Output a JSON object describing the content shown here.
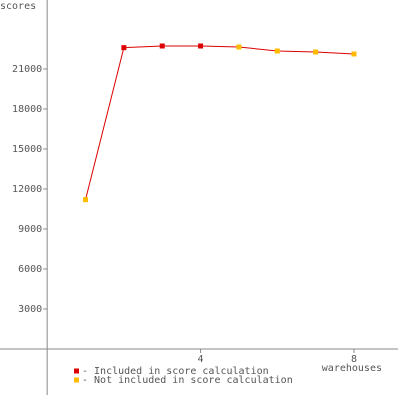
{
  "chart_data": {
    "type": "line",
    "y_label": "scores",
    "x_label": "warehouses",
    "x": [
      1,
      2,
      3,
      4,
      5,
      6,
      7,
      8
    ],
    "series": [
      {
        "color": "#dd0000",
        "values": [
          11200,
          22600,
          22725,
          22725,
          22650,
          22350,
          22275,
          22125
        ]
      }
    ],
    "point_colors": [
      "#ffbb00",
      "#dd0000",
      "#dd0000",
      "#dd0000",
      "#ffbb00",
      "#ffbb00",
      "#ffbb00",
      "#ffbb00"
    ],
    "legend": [
      {
        "label": "- Included in score calculation",
        "color": "#dd0000"
      },
      {
        "label": "- Not included in score calculation",
        "color": "#ffbb00"
      }
    ],
    "xlim": [
      -1.23,
      9.2
    ],
    "ylim": [
      -3825,
      26175
    ],
    "xticks": [
      4,
      8
    ],
    "yticks": [
      3000,
      6000,
      9000,
      12000,
      15000,
      18000,
      21000
    ]
  }
}
